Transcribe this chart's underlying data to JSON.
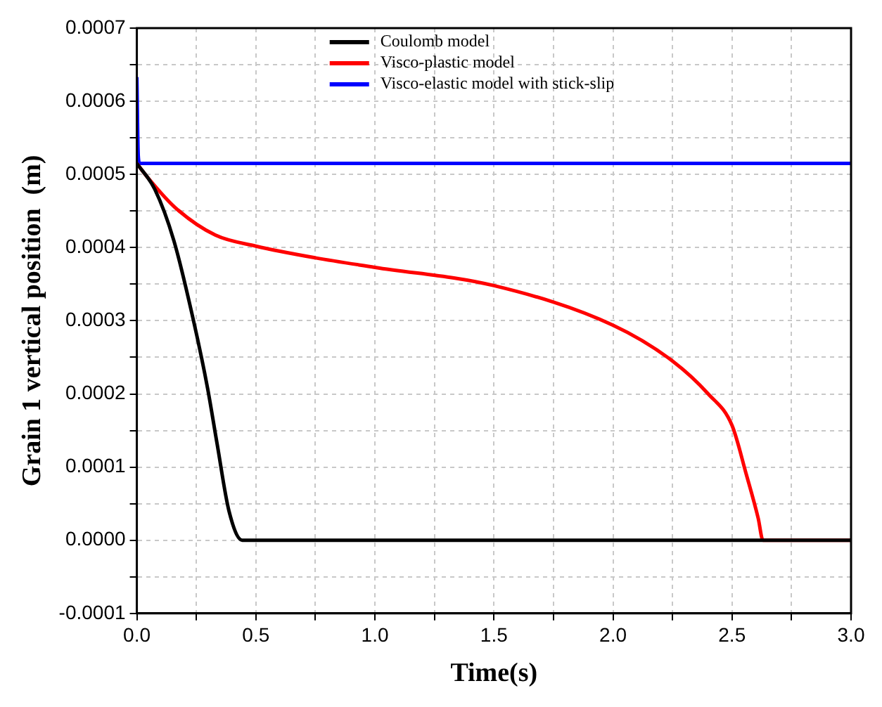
{
  "chart_data": {
    "type": "line",
    "xlabel": "Time(s)",
    "ylabel": "Grain 1 vertical position  (m)",
    "xlim": [
      0,
      3.0
    ],
    "ylim": [
      -0.0001,
      0.0007
    ],
    "xticks": [
      {
        "value": 0,
        "label": "0.0"
      },
      {
        "value": 0.25,
        "label": null
      },
      {
        "value": 0.5,
        "label": "0.5"
      },
      {
        "value": 0.75,
        "label": null
      },
      {
        "value": 1,
        "label": "1.0"
      },
      {
        "value": 1.25,
        "label": null
      },
      {
        "value": 1.5,
        "label": "1.5"
      },
      {
        "value": 1.75,
        "label": null
      },
      {
        "value": 2,
        "label": "2.0"
      },
      {
        "value": 2.25,
        "label": null
      },
      {
        "value": 2.5,
        "label": "2.5"
      },
      {
        "value": 2.75,
        "label": null
      },
      {
        "value": 3,
        "label": "3.0"
      }
    ],
    "yticks": [
      {
        "value": -0.0001,
        "label": "-0.0001"
      },
      {
        "value": -5e-05,
        "label": null
      },
      {
        "value": 0,
        "label": "0.0000"
      },
      {
        "value": 5e-05,
        "label": null
      },
      {
        "value": 0.0001,
        "label": "0.0001"
      },
      {
        "value": 0.00015,
        "label": null
      },
      {
        "value": 0.0002,
        "label": "0.0002"
      },
      {
        "value": 0.00025,
        "label": null
      },
      {
        "value": 0.0003,
        "label": "0.0003"
      },
      {
        "value": 0.00035,
        "label": null
      },
      {
        "value": 0.0004,
        "label": "0.0004"
      },
      {
        "value": 0.00045,
        "label": null
      },
      {
        "value": 0.0005,
        "label": "0.0005"
      },
      {
        "value": 0.00055,
        "label": null
      },
      {
        "value": 0.0006,
        "label": "0.0006"
      },
      {
        "value": 0.00065,
        "label": null
      },
      {
        "value": 0.0007,
        "label": "0.0007"
      }
    ],
    "grid": true,
    "legend": "top",
    "marker": "none",
    "line_style": "solid",
    "series": [
      {
        "name": "Coulomb model",
        "color": "#000000",
        "x": [
          0,
          0.075,
          0.155,
          0.236,
          0.297,
          0.337,
          0.387,
          0.443,
          3.0
        ],
        "values": [
          0.000515,
          0.00048,
          0.00041,
          0.000303,
          0.000208,
          0.000132,
          4e-05,
          0,
          0
        ]
      },
      {
        "name": "Visco-plastic model",
        "color": "#ff0000",
        "x": [
          0,
          0.04,
          0.16,
          0.33,
          0.5,
          0.75,
          1.0,
          1.5,
          2.0,
          2.25,
          2.4,
          2.5,
          2.56,
          2.61,
          2.63,
          3.0
        ],
        "values": [
          0.000515,
          0.000498,
          0.000455,
          0.000417,
          0.000402,
          0.000386,
          0.000373,
          0.000348,
          0.000294,
          0.000245,
          0.0002,
          0.000157,
          9e-05,
          3e-05,
          0,
          0
        ]
      },
      {
        "name": "Visco-elastic model with stick-slip",
        "color": "#0000ff",
        "x": [
          0,
          0.006,
          0.012,
          3.0
        ],
        "values": [
          0.000633,
          0.000525,
          0.000515,
          0.000515
        ]
      }
    ]
  }
}
